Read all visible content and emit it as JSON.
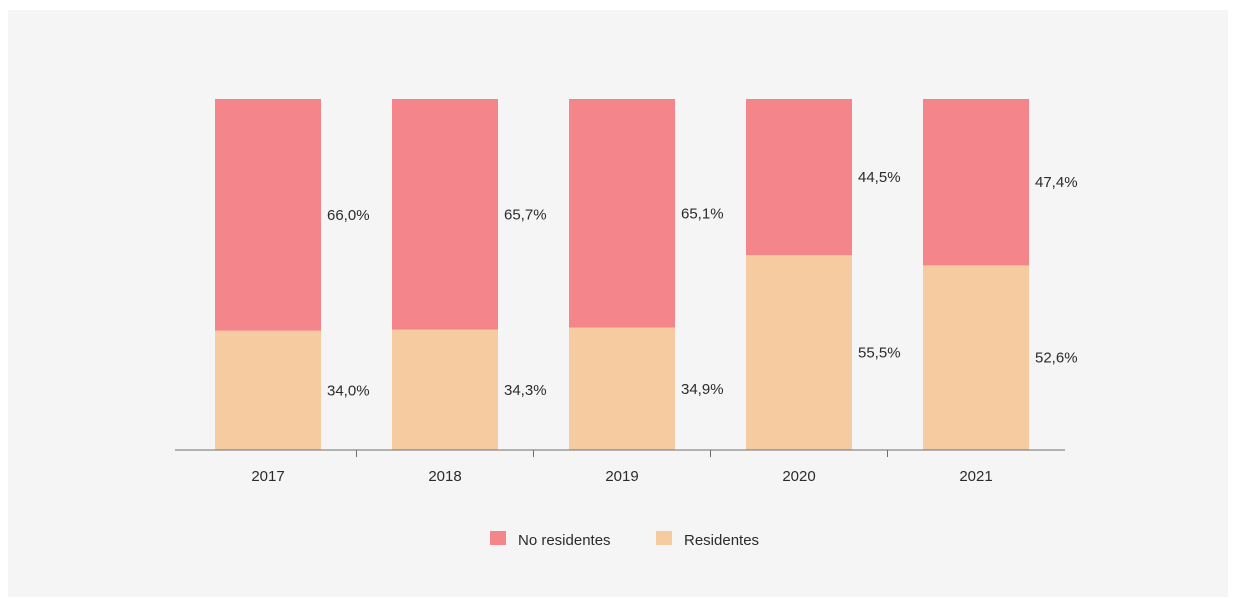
{
  "chart_data": {
    "type": "bar",
    "stacked": true,
    "normalized": true,
    "categories": [
      "2017",
      "2018",
      "2019",
      "2020",
      "2021"
    ],
    "series": [
      {
        "name": "No residentes",
        "values": [
          66.0,
          65.7,
          65.1,
          44.5,
          47.4
        ],
        "labels": [
          "66,0%",
          "65,7%",
          "65,1%",
          "44,5%",
          "47,4%"
        ],
        "color": "#f4858a"
      },
      {
        "name": "Residentes",
        "values": [
          34.0,
          34.3,
          34.9,
          55.5,
          52.6
        ],
        "labels": [
          "34,0%",
          "34,3%",
          "34,9%",
          "55,5%",
          "52,6%"
        ],
        "color": "#f6cb9f"
      }
    ],
    "ylim": [
      0,
      100
    ],
    "grid": false,
    "legend": "bottom-center",
    "title": "",
    "xlabel": "",
    "ylabel": ""
  }
}
